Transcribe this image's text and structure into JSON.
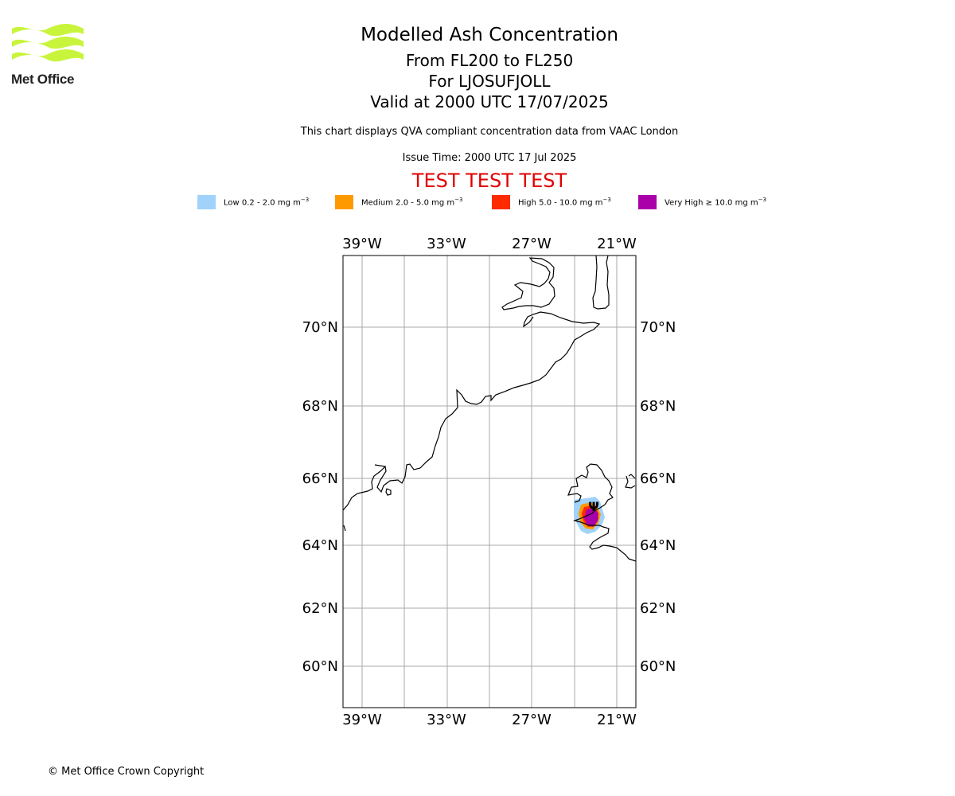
{
  "logo": {
    "text": "Met Office",
    "color": "#c8f53c"
  },
  "header": {
    "title": "Modelled Ash Concentration",
    "levels": "From FL200 to FL250",
    "location": "For LJOSUFJOLL",
    "valid": "Valid at 2000 UTC 17/07/2025",
    "description": "This chart displays QVA compliant concentration data from VAAC London",
    "issue_time": "Issue Time: 2000 UTC 17 Jul 2025",
    "test_banner": "TEST TEST TEST",
    "test_color": "#e00000"
  },
  "legend": [
    {
      "label": "Low 0.2 - 2.0 mg m",
      "sup": "−3",
      "color": "#a0d2fa"
    },
    {
      "label": "Medium 2.0 - 5.0 mg m",
      "sup": "−3",
      "color": "#ff9900"
    },
    {
      "label": "High 5.0 - 10.0 mg m",
      "sup": "−3",
      "color": "#ff2a00"
    },
    {
      "label": "Very High ≥ 10.0 mg m",
      "sup": "−3",
      "color": "#aa00aa"
    }
  ],
  "map": {
    "lon_labels": [
      "39°W",
      "33°W",
      "27°W",
      "21°W"
    ],
    "lat_labels": [
      "70°N",
      "68°N",
      "66°N",
      "64°N",
      "62°N",
      "60°N"
    ],
    "gridline_color": "#aaaaaa",
    "coast_color": "#000000",
    "volcano_marker": "Ψ"
  },
  "footer": {
    "copyright": "© Met Office Crown Copyright"
  }
}
